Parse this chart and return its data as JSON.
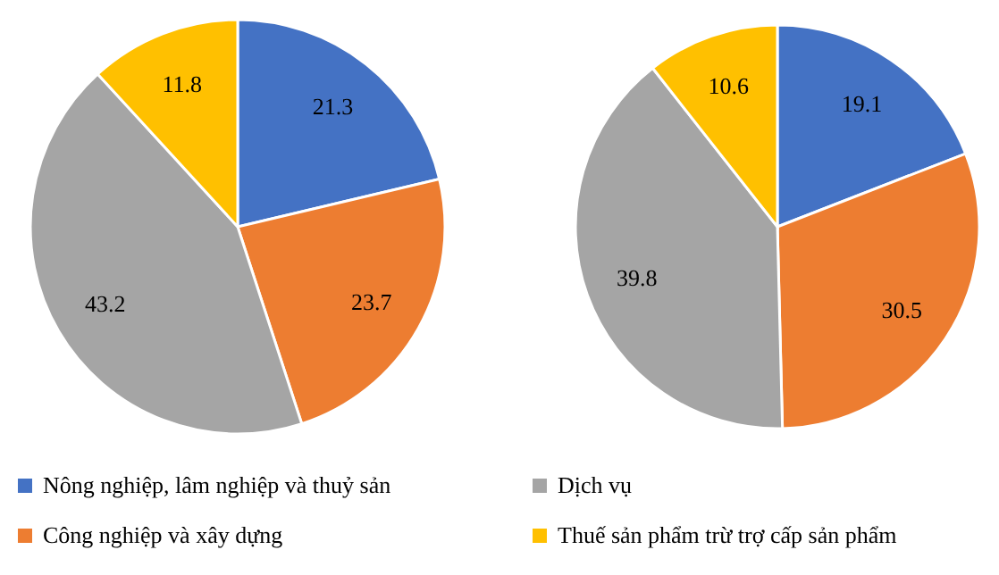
{
  "chart_data": [
    {
      "type": "pie",
      "categories": [
        "Nông nghiệp, lâm nghiệp và thuỷ sản",
        "Công nghiệp và xây dựng",
        "Dịch vụ",
        "Thuế sản phẩm trừ trợ cấp sản phẩm"
      ],
      "values": [
        21.3,
        23.7,
        43.2,
        11.8
      ],
      "colors": [
        "#4472c4",
        "#ed7d31",
        "#a5a5a5",
        "#ffc000"
      ],
      "data_labels": true,
      "legend": "bottom"
    },
    {
      "type": "pie",
      "categories": [
        null,
        null,
        null,
        null
      ],
      "values": [
        19.1,
        30.5,
        39.8,
        10.6
      ],
      "colors": [
        "#4472c4",
        "#ed7d31",
        "#a5a5a5",
        "#ffc000"
      ],
      "data_labels": true
    }
  ]
}
